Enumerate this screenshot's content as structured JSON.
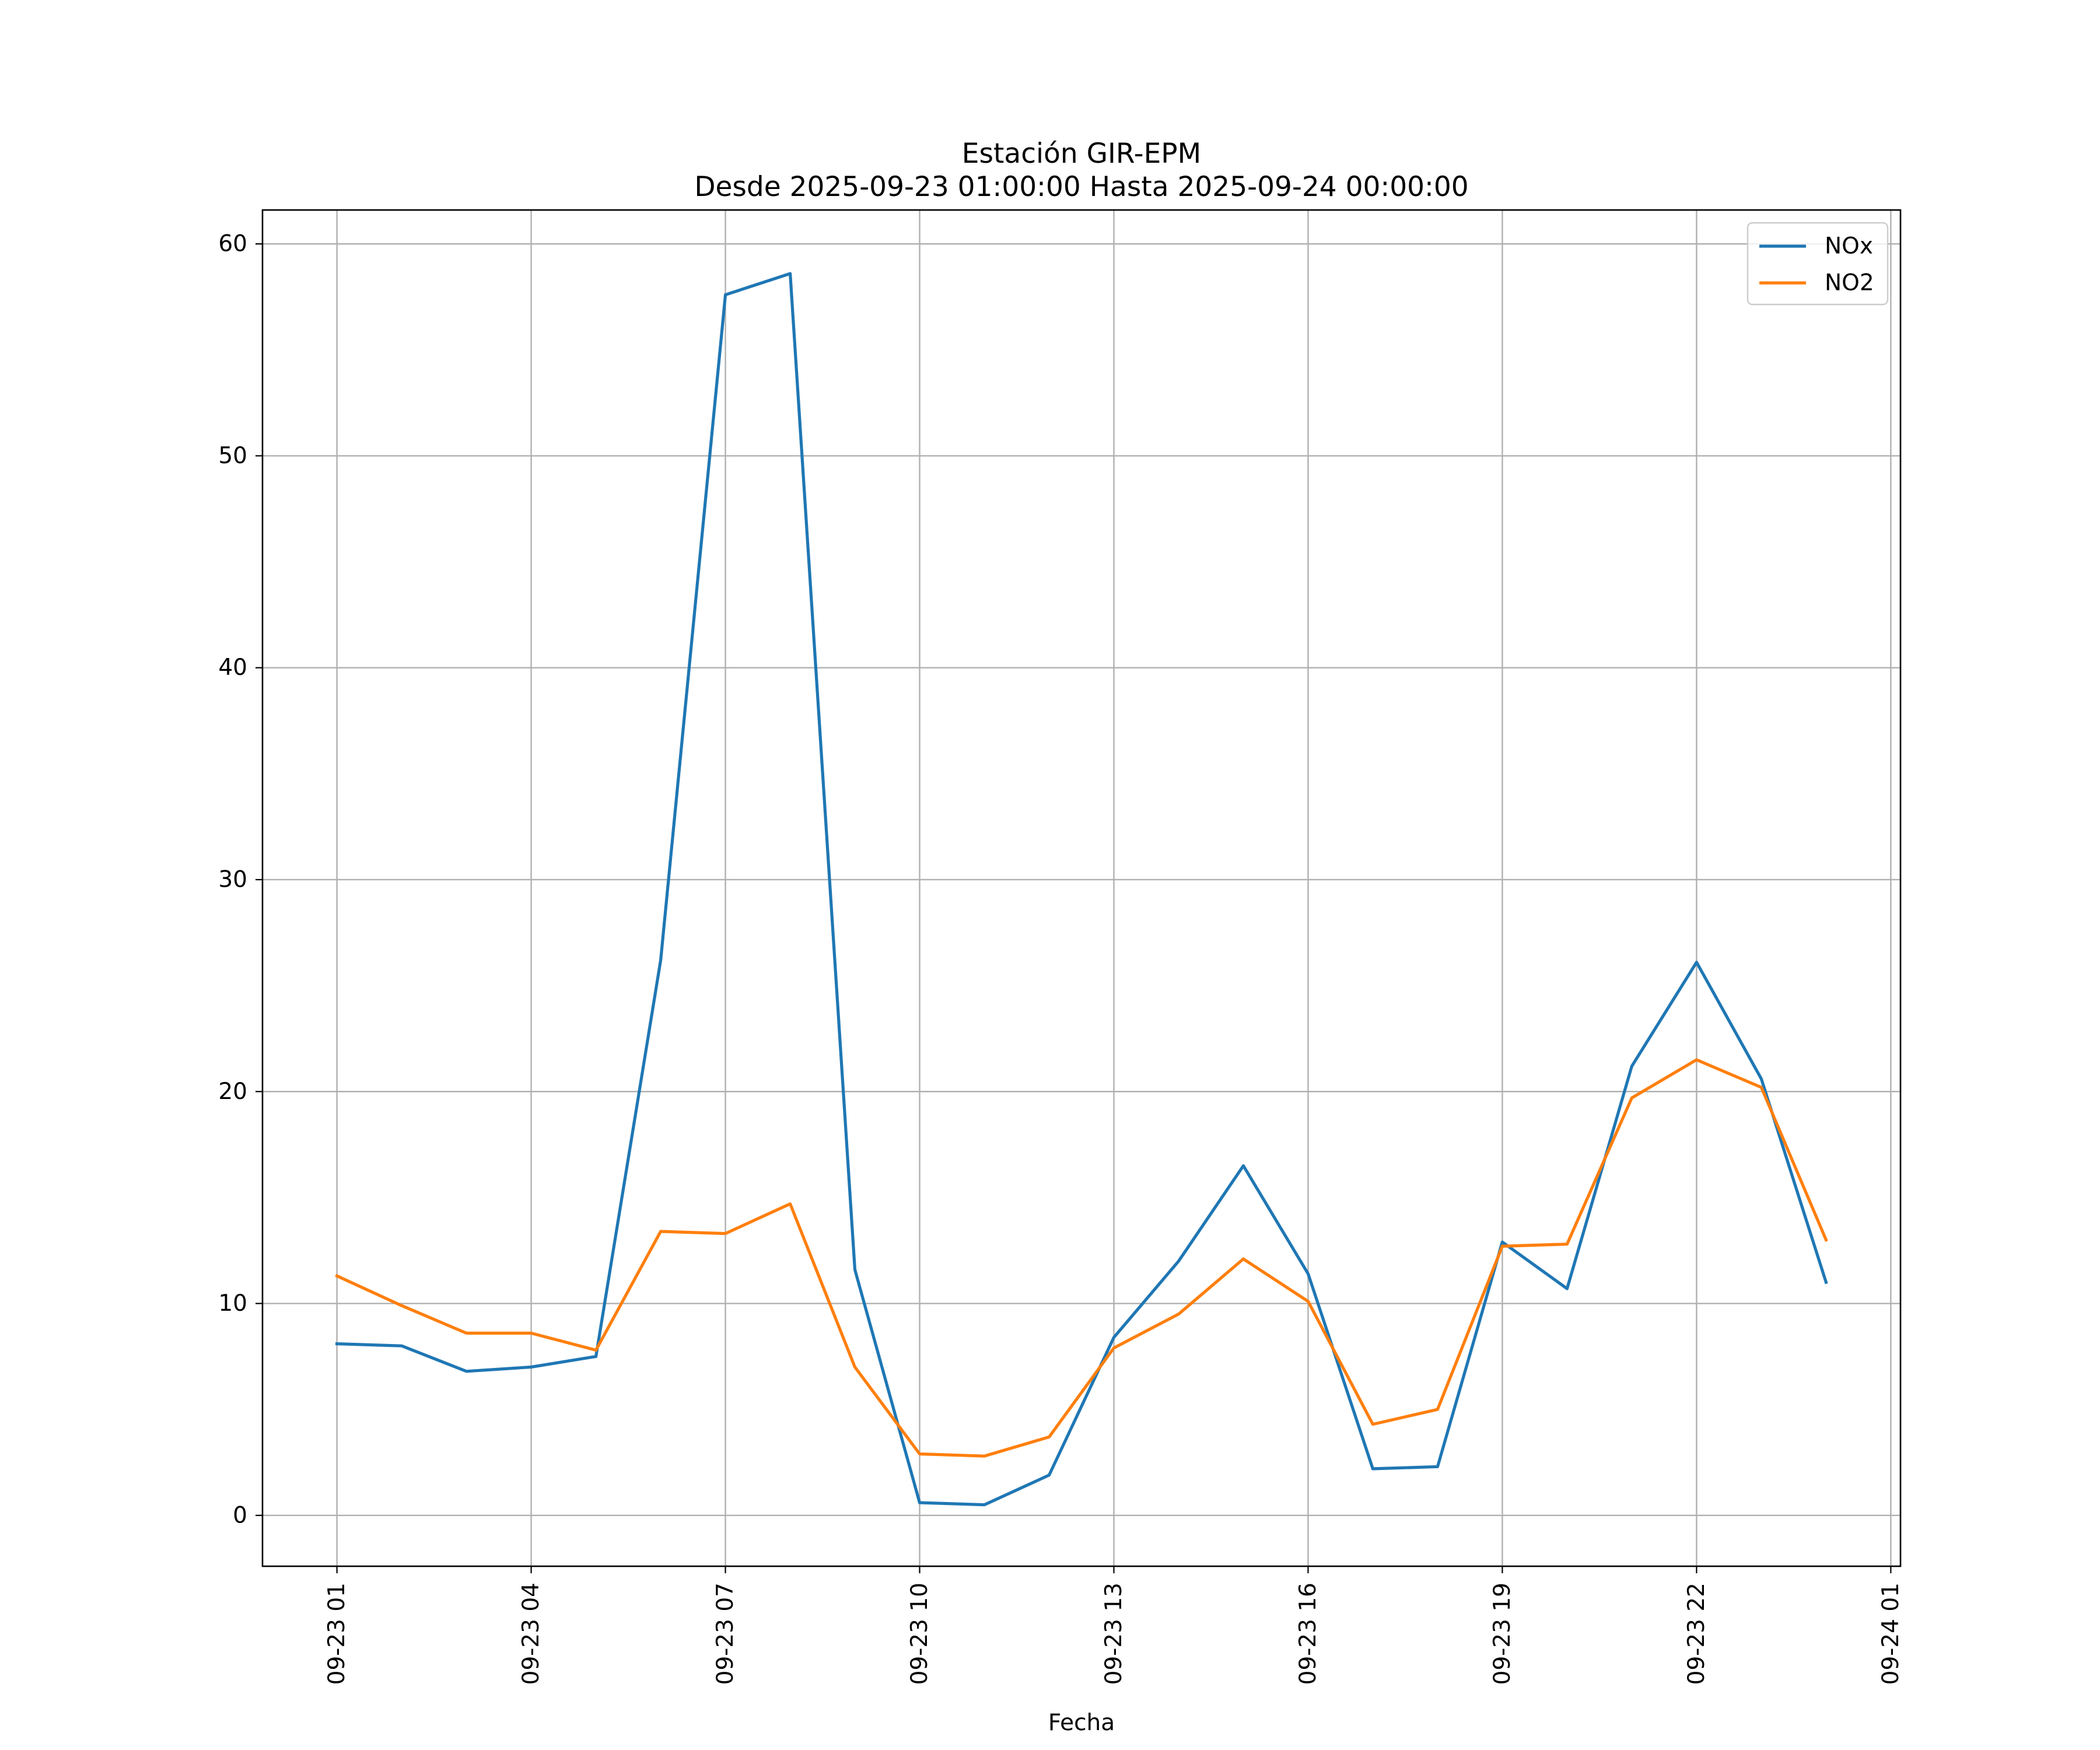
{
  "chart_data": {
    "type": "line",
    "title": "Estación GIR-EPM",
    "subtitle": "Desde 2025-09-23 01:00:00 Hasta 2025-09-24 00:00:00",
    "xlabel": "Fecha",
    "ylabel": "",
    "x": [
      "2025-09-23 01:00",
      "2025-09-23 02:00",
      "2025-09-23 03:00",
      "2025-09-23 04:00",
      "2025-09-23 05:00",
      "2025-09-23 06:00",
      "2025-09-23 07:00",
      "2025-09-23 08:00",
      "2025-09-23 09:00",
      "2025-09-23 10:00",
      "2025-09-23 11:00",
      "2025-09-23 12:00",
      "2025-09-23 13:00",
      "2025-09-23 14:00",
      "2025-09-23 15:00",
      "2025-09-23 16:00",
      "2025-09-23 17:00",
      "2025-09-23 18:00",
      "2025-09-23 19:00",
      "2025-09-23 20:00",
      "2025-09-23 21:00",
      "2025-09-23 22:00",
      "2025-09-23 23:00",
      "2025-09-24 00:00"
    ],
    "series": [
      {
        "name": "NOx",
        "color": "#1f77b4",
        "values": [
          8.1,
          8.0,
          6.8,
          7.0,
          7.5,
          26.2,
          57.6,
          58.6,
          11.6,
          0.6,
          0.5,
          1.9,
          8.4,
          12.0,
          16.5,
          11.4,
          2.2,
          2.3,
          12.9,
          10.7,
          21.2,
          26.1,
          20.6,
          11.0
        ]
      },
      {
        "name": "NO2",
        "color": "#ff7f0e",
        "values": [
          11.3,
          9.9,
          8.6,
          8.6,
          7.8,
          13.4,
          13.3,
          14.7,
          7.0,
          2.9,
          2.8,
          3.7,
          7.9,
          9.5,
          12.1,
          10.1,
          4.3,
          5.0,
          12.7,
          12.8,
          19.7,
          21.5,
          20.2,
          13.0
        ]
      }
    ],
    "xticks": [
      "09-23 01",
      "09-23 04",
      "09-23 07",
      "09-23 10",
      "09-23 13",
      "09-23 16",
      "09-23 19",
      "09-23 22",
      "09-24 01"
    ],
    "yticks": [
      "0",
      "10",
      "20",
      "30",
      "40",
      "50",
      "60"
    ],
    "ylim": [
      -2.4,
      61.6
    ],
    "xlim": [
      "2025-09-22 23:51",
      "2025-09-24 01:09"
    ],
    "grid": true,
    "legend": "top-right"
  }
}
